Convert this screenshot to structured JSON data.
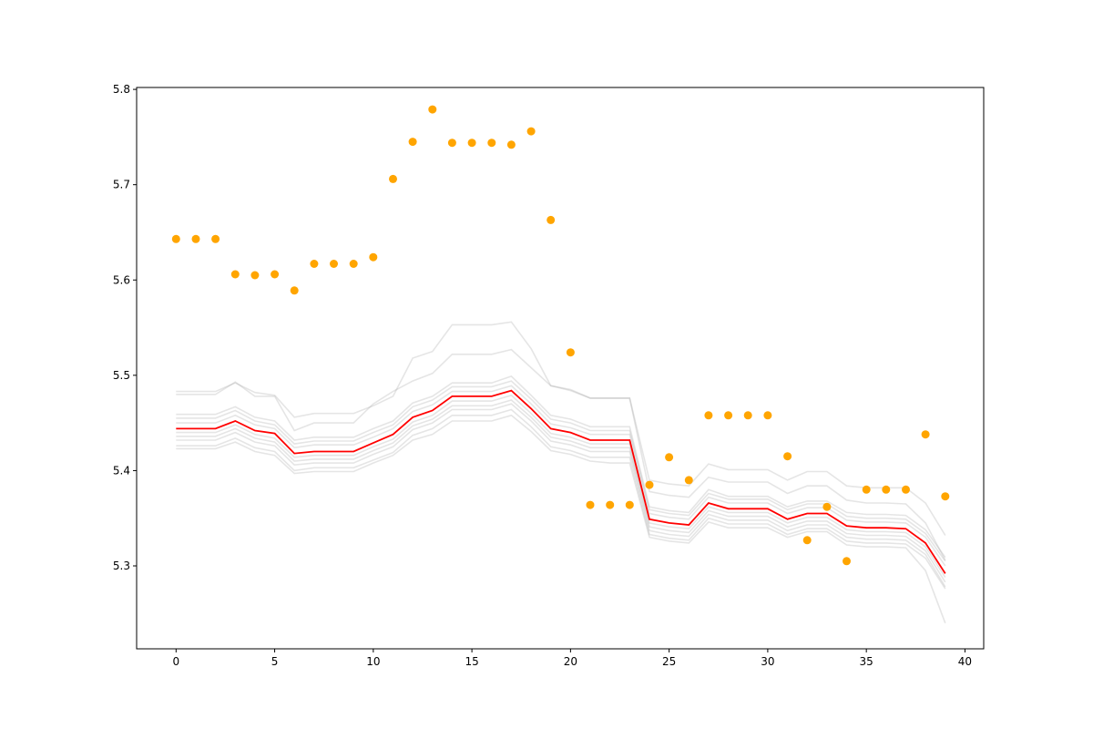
{
  "chart_data": {
    "type": "line",
    "title": "",
    "xlabel": "",
    "ylabel": "",
    "xlim": [
      -2,
      40.95
    ],
    "ylim": [
      5.213,
      5.802
    ],
    "x_ticks": [
      0,
      5,
      10,
      15,
      20,
      25,
      30,
      35,
      40
    ],
    "y_ticks": [
      5.3,
      5.4,
      5.5,
      5.6,
      5.7,
      5.8
    ],
    "grid": false,
    "legend": "none",
    "x": [
      0,
      1,
      2,
      3,
      4,
      5,
      6,
      7,
      8,
      9,
      10,
      11,
      12,
      13,
      14,
      15,
      16,
      17,
      18,
      19,
      20,
      21,
      22,
      23,
      24,
      25,
      26,
      27,
      28,
      29,
      30,
      31,
      32,
      33,
      34,
      35,
      36,
      37,
      38,
      39
    ],
    "colors": {
      "highlight": "#ff0000",
      "points": "#ffa500",
      "background_lines": "#a0a0a0",
      "axes": "#000000"
    },
    "mean_line": [
      5.444,
      5.444,
      5.444,
      5.452,
      5.442,
      5.439,
      5.418,
      5.42,
      5.42,
      5.42,
      5.429,
      5.438,
      5.456,
      5.463,
      5.478,
      5.478,
      5.478,
      5.484,
      5.465,
      5.444,
      5.44,
      5.432,
      5.432,
      5.432,
      5.349,
      5.345,
      5.343,
      5.366,
      5.36,
      5.36,
      5.36,
      5.349,
      5.355,
      5.355,
      5.342,
      5.34,
      5.34,
      5.339,
      5.324,
      5.292
    ],
    "observed_points": [
      5.643,
      5.643,
      5.643,
      5.606,
      5.605,
      5.606,
      5.589,
      5.617,
      5.617,
      5.617,
      5.624,
      5.706,
      5.745,
      5.779,
      5.744,
      5.744,
      5.744,
      5.742,
      5.756,
      5.663,
      5.524,
      5.364,
      5.364,
      5.364,
      5.385,
      5.414,
      5.39,
      5.458,
      5.458,
      5.458,
      5.458,
      5.415,
      5.327,
      5.362,
      5.305,
      5.38,
      5.38,
      5.38,
      5.438,
      5.373
    ],
    "background_series": [
      {
        "values": [
          5.483,
          5.483,
          5.483,
          5.492,
          5.482,
          5.479,
          5.456,
          5.46,
          5.46,
          5.46,
          5.468,
          5.478,
          5.518,
          5.525,
          5.553,
          5.553,
          5.553,
          5.556,
          5.528,
          5.489,
          5.485,
          5.476,
          5.476,
          5.476,
          5.39,
          5.386,
          5.384,
          5.407,
          5.401,
          5.401,
          5.401,
          5.39,
          5.399,
          5.399,
          5.384,
          5.382,
          5.382,
          5.382,
          5.366,
          5.332
        ]
      },
      {
        "values": [
          5.48,
          5.48,
          5.48,
          5.493,
          5.478,
          5.478,
          5.442,
          5.45,
          5.45,
          5.45,
          5.47,
          5.483,
          5.494,
          5.502,
          5.522,
          5.522,
          5.522,
          5.527,
          5.508,
          5.489,
          5.484,
          5.476,
          5.476,
          5.476,
          5.378,
          5.374,
          5.372,
          5.393,
          5.388,
          5.388,
          5.388,
          5.376,
          5.384,
          5.384,
          5.369,
          5.366,
          5.366,
          5.365,
          5.345,
          5.306
        ]
      },
      {
        "values": [
          5.459,
          5.459,
          5.459,
          5.467,
          5.456,
          5.452,
          5.432,
          5.435,
          5.435,
          5.435,
          5.444,
          5.452,
          5.471,
          5.478,
          5.492,
          5.492,
          5.492,
          5.499,
          5.479,
          5.458,
          5.454,
          5.446,
          5.446,
          5.446,
          5.362,
          5.358,
          5.356,
          5.38,
          5.373,
          5.373,
          5.373,
          5.362,
          5.368,
          5.368,
          5.356,
          5.354,
          5.354,
          5.353,
          5.338,
          5.309
        ]
      },
      {
        "values": [
          5.455,
          5.455,
          5.455,
          5.463,
          5.452,
          5.448,
          5.428,
          5.431,
          5.431,
          5.431,
          5.44,
          5.448,
          5.467,
          5.474,
          5.488,
          5.488,
          5.488,
          5.494,
          5.475,
          5.454,
          5.45,
          5.442,
          5.442,
          5.442,
          5.359,
          5.355,
          5.353,
          5.376,
          5.37,
          5.37,
          5.37,
          5.359,
          5.365,
          5.365,
          5.352,
          5.35,
          5.35,
          5.349,
          5.334,
          5.305
        ]
      },
      {
        "values": [
          5.45,
          5.45,
          5.45,
          5.458,
          5.448,
          5.444,
          5.424,
          5.427,
          5.427,
          5.427,
          5.435,
          5.444,
          5.462,
          5.469,
          5.483,
          5.483,
          5.483,
          5.489,
          5.47,
          5.449,
          5.445,
          5.438,
          5.438,
          5.438,
          5.355,
          5.351,
          5.349,
          5.372,
          5.366,
          5.366,
          5.366,
          5.355,
          5.361,
          5.361,
          5.348,
          5.346,
          5.346,
          5.345,
          5.33,
          5.3
        ]
      },
      {
        "values": [
          5.44,
          5.44,
          5.44,
          5.448,
          5.438,
          5.434,
          5.414,
          5.416,
          5.416,
          5.416,
          5.425,
          5.433,
          5.451,
          5.458,
          5.473,
          5.473,
          5.473,
          5.479,
          5.46,
          5.439,
          5.435,
          5.428,
          5.428,
          5.428,
          5.345,
          5.341,
          5.339,
          5.362,
          5.356,
          5.356,
          5.356,
          5.345,
          5.351,
          5.351,
          5.338,
          5.336,
          5.336,
          5.335,
          5.32,
          5.288
        ]
      },
      {
        "values": [
          5.436,
          5.436,
          5.436,
          5.444,
          5.434,
          5.43,
          5.41,
          5.412,
          5.412,
          5.412,
          5.421,
          5.429,
          5.447,
          5.454,
          5.468,
          5.468,
          5.468,
          5.474,
          5.456,
          5.435,
          5.431,
          5.424,
          5.424,
          5.424,
          5.341,
          5.337,
          5.335,
          5.358,
          5.352,
          5.352,
          5.352,
          5.341,
          5.347,
          5.347,
          5.334,
          5.332,
          5.332,
          5.331,
          5.316,
          5.283
        ]
      },
      {
        "values": [
          5.432,
          5.432,
          5.432,
          5.44,
          5.43,
          5.426,
          5.406,
          5.408,
          5.408,
          5.408,
          5.417,
          5.425,
          5.443,
          5.45,
          5.464,
          5.464,
          5.464,
          5.47,
          5.452,
          5.431,
          5.427,
          5.42,
          5.42,
          5.42,
          5.337,
          5.333,
          5.331,
          5.354,
          5.348,
          5.348,
          5.348,
          5.337,
          5.343,
          5.343,
          5.33,
          5.328,
          5.328,
          5.327,
          5.312,
          5.278
        ]
      },
      {
        "values": [
          5.426,
          5.426,
          5.426,
          5.434,
          5.424,
          5.42,
          5.4,
          5.403,
          5.403,
          5.403,
          5.411,
          5.419,
          5.437,
          5.444,
          5.458,
          5.458,
          5.458,
          5.464,
          5.446,
          5.425,
          5.421,
          5.414,
          5.414,
          5.414,
          5.333,
          5.329,
          5.327,
          5.35,
          5.344,
          5.344,
          5.344,
          5.333,
          5.339,
          5.339,
          5.326,
          5.324,
          5.324,
          5.323,
          5.308,
          5.276
        ]
      },
      {
        "values": [
          5.423,
          5.423,
          5.423,
          5.43,
          5.42,
          5.416,
          5.397,
          5.399,
          5.399,
          5.399,
          5.408,
          5.416,
          5.432,
          5.438,
          5.452,
          5.452,
          5.452,
          5.458,
          5.441,
          5.421,
          5.417,
          5.41,
          5.408,
          5.408,
          5.33,
          5.326,
          5.324,
          5.346,
          5.34,
          5.34,
          5.34,
          5.33,
          5.336,
          5.336,
          5.322,
          5.32,
          5.32,
          5.319,
          5.295,
          5.24
        ]
      }
    ]
  }
}
